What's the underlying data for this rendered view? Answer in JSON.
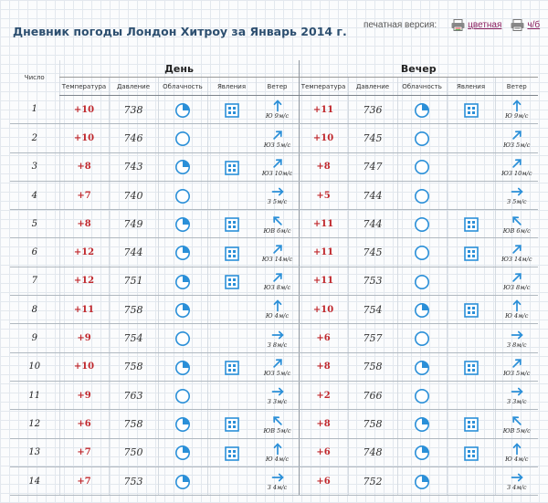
{
  "header": {
    "title": "Дневник погоды Лондон Хитроу за Январь 2014 г.",
    "print_label": "печатная версия:",
    "print_color": "цветная",
    "print_bw": "ч/б"
  },
  "table": {
    "col_day": "Число",
    "group_day": "День",
    "group_evening": "Вечер",
    "col_temp": "Температура",
    "col_pressure": "Давление",
    "col_cloud": "Облачность",
    "col_phen": "Явления",
    "col_wind": "Ветер"
  },
  "rows": [
    {
      "day": "1",
      "d": {
        "t": "+10",
        "p": "738",
        "cloud": "partly",
        "phen": "rain",
        "wdir": "Ю",
        "wspd": "9м/с"
      },
      "e": {
        "t": "+11",
        "p": "736",
        "cloud": "partly",
        "phen": "rain",
        "wdir": "Ю",
        "wspd": "9м/с"
      }
    },
    {
      "day": "2",
      "d": {
        "t": "+10",
        "p": "746",
        "cloud": "clear",
        "phen": "",
        "wdir": "ЮЗ",
        "wspd": "5м/с"
      },
      "e": {
        "t": "+10",
        "p": "745",
        "cloud": "clear",
        "phen": "",
        "wdir": "ЮЗ",
        "wspd": "5м/с"
      }
    },
    {
      "day": "3",
      "d": {
        "t": "+8",
        "p": "743",
        "cloud": "partly",
        "phen": "rain",
        "wdir": "ЮЗ",
        "wspd": "10м/с"
      },
      "e": {
        "t": "+8",
        "p": "747",
        "cloud": "clear",
        "phen": "",
        "wdir": "ЮЗ",
        "wspd": "10м/с"
      }
    },
    {
      "day": "4",
      "d": {
        "t": "+7",
        "p": "740",
        "cloud": "clear",
        "phen": "",
        "wdir": "З",
        "wspd": "5м/с"
      },
      "e": {
        "t": "+5",
        "p": "744",
        "cloud": "clear",
        "phen": "",
        "wdir": "З",
        "wspd": "5м/с"
      }
    },
    {
      "day": "5",
      "d": {
        "t": "+8",
        "p": "749",
        "cloud": "partly",
        "phen": "rain",
        "wdir": "ЮВ",
        "wspd": "6м/с"
      },
      "e": {
        "t": "+11",
        "p": "744",
        "cloud": "clear",
        "phen": "rain",
        "wdir": "ЮВ",
        "wspd": "6м/с"
      }
    },
    {
      "day": "6",
      "d": {
        "t": "+12",
        "p": "744",
        "cloud": "partly",
        "phen": "rain",
        "wdir": "ЮЗ",
        "wspd": "14м/с"
      },
      "e": {
        "t": "+11",
        "p": "745",
        "cloud": "clear",
        "phen": "rain",
        "wdir": "ЮЗ",
        "wspd": "14м/с"
      }
    },
    {
      "day": "7",
      "d": {
        "t": "+12",
        "p": "751",
        "cloud": "partly",
        "phen": "rain",
        "wdir": "ЮЗ",
        "wspd": "8м/с"
      },
      "e": {
        "t": "+11",
        "p": "753",
        "cloud": "clear",
        "phen": "",
        "wdir": "ЮЗ",
        "wspd": "8м/с"
      }
    },
    {
      "day": "8",
      "d": {
        "t": "+11",
        "p": "758",
        "cloud": "partly",
        "phen": "",
        "wdir": "Ю",
        "wspd": "4м/с"
      },
      "e": {
        "t": "+10",
        "p": "754",
        "cloud": "partly",
        "phen": "rain",
        "wdir": "Ю",
        "wspd": "4м/с"
      }
    },
    {
      "day": "9",
      "d": {
        "t": "+9",
        "p": "754",
        "cloud": "clear",
        "phen": "",
        "wdir": "З",
        "wspd": "8м/с"
      },
      "e": {
        "t": "+6",
        "p": "757",
        "cloud": "clear",
        "phen": "",
        "wdir": "З",
        "wspd": "8м/с"
      }
    },
    {
      "day": "10",
      "d": {
        "t": "+10",
        "p": "758",
        "cloud": "partly",
        "phen": "rain",
        "wdir": "ЮЗ",
        "wspd": "5м/с"
      },
      "e": {
        "t": "+8",
        "p": "758",
        "cloud": "partly",
        "phen": "rain",
        "wdir": "ЮЗ",
        "wspd": "5м/с"
      }
    },
    {
      "day": "11",
      "d": {
        "t": "+9",
        "p": "763",
        "cloud": "clear",
        "phen": "",
        "wdir": "З",
        "wspd": "3м/с"
      },
      "e": {
        "t": "+2",
        "p": "766",
        "cloud": "clear",
        "phen": "",
        "wdir": "З",
        "wspd": "3м/с"
      }
    },
    {
      "day": "12",
      "d": {
        "t": "+6",
        "p": "758",
        "cloud": "partly",
        "phen": "rain",
        "wdir": "ЮВ",
        "wspd": "5м/с"
      },
      "e": {
        "t": "+8",
        "p": "758",
        "cloud": "partly",
        "phen": "rain",
        "wdir": "ЮВ",
        "wspd": "5м/с"
      }
    },
    {
      "day": "13",
      "d": {
        "t": "+7",
        "p": "750",
        "cloud": "partly",
        "phen": "rain",
        "wdir": "Ю",
        "wspd": "4м/с"
      },
      "e": {
        "t": "+6",
        "p": "748",
        "cloud": "partly",
        "phen": "rain",
        "wdir": "Ю",
        "wspd": "4м/с"
      }
    },
    {
      "day": "14",
      "d": {
        "t": "+7",
        "p": "753",
        "cloud": "partly",
        "phen": "",
        "wdir": "З",
        "wspd": "4м/с"
      },
      "e": {
        "t": "+6",
        "p": "752",
        "cloud": "partly",
        "phen": "",
        "wdir": "З",
        "wspd": "4м/с"
      }
    }
  ],
  "colors": {
    "title": "#2d4f70",
    "temperature": "#c0282d",
    "icon_blue": "#2a8fd8",
    "link": "#8b2060"
  },
  "icons": {
    "cloud_clear": "circle-icon",
    "cloud_partly": "quarter-circle-icon",
    "phenomenon_rain": "dotted-square-icon",
    "wind": "arrow-icon",
    "print": "printer-icon"
  }
}
